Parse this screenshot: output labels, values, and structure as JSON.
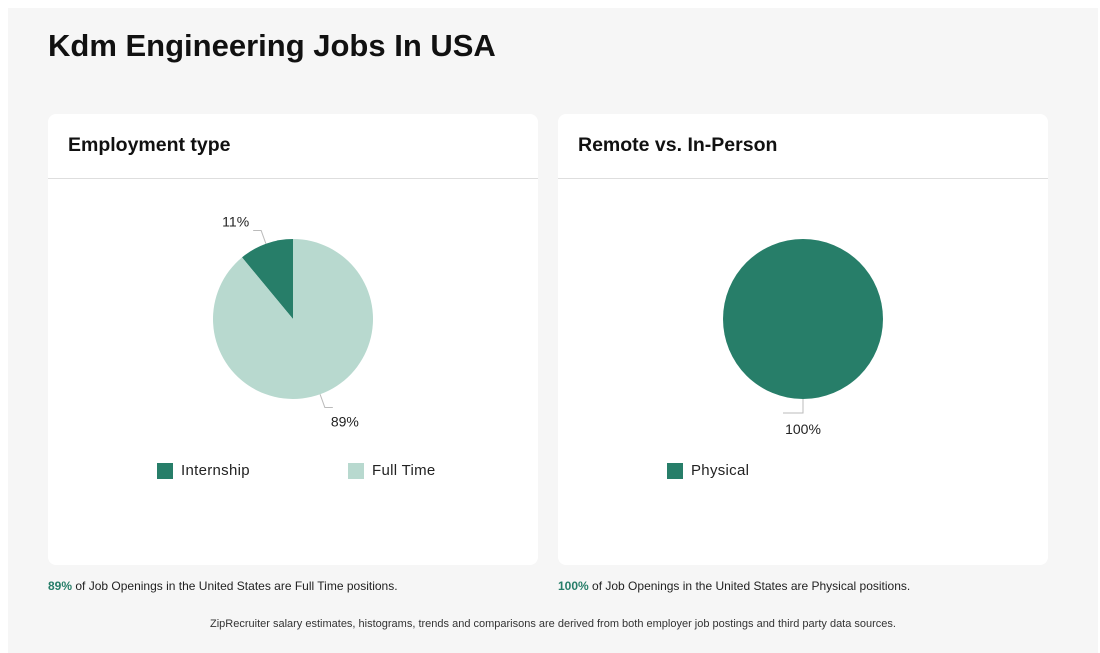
{
  "page": {
    "title": "Kdm Engineering Jobs In USA"
  },
  "colors": {
    "primary": "#277e69",
    "secondary": "#b8d9cf",
    "accent_text": "#277e69"
  },
  "chart_data": [
    {
      "type": "pie",
      "title": "Employment type",
      "slices": [
        {
          "label": "Internship",
          "value": 11,
          "display": "11%",
          "color": "#277e69"
        },
        {
          "label": "Full Time",
          "value": 89,
          "display": "89%",
          "color": "#b8d9cf"
        }
      ],
      "legend": [
        "Internship",
        "Full Time"
      ],
      "legend_position": "bottom",
      "summary": {
        "pct": "89%",
        "text": " of Job Openings in the United States are Full Time positions."
      }
    },
    {
      "type": "pie",
      "title": "Remote vs. In-Person",
      "slices": [
        {
          "label": "Physical",
          "value": 100,
          "display": "100%",
          "color": "#277e69"
        }
      ],
      "legend": [
        "Physical"
      ],
      "legend_position": "bottom",
      "summary": {
        "pct": "100%",
        "text": " of Job Openings in the United States are Physical positions."
      }
    }
  ],
  "footer": {
    "text": "ZipRecruiter salary estimates, histograms, trends and comparisons are derived from both employer job postings and third party data sources."
  }
}
